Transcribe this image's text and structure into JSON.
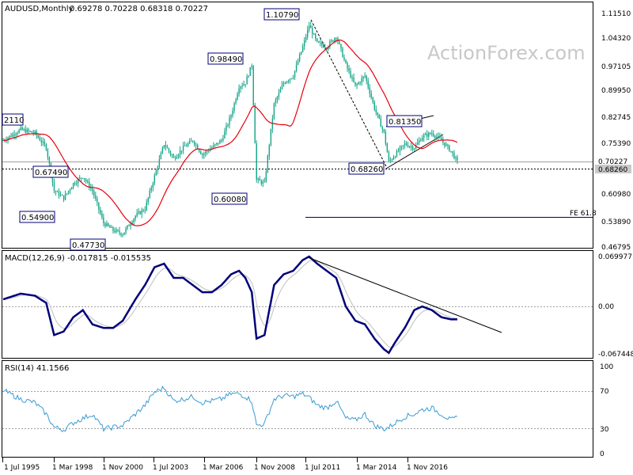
{
  "header": {
    "symbol_info": "AUDUSD,Monthly",
    "ohlc": "0.69278 0.70228 0.68318 0.70227"
  },
  "watermark": "ActionForex.com",
  "colors": {
    "candle": "#17a589",
    "sma": "#e8000b",
    "macd_line": "#00007a",
    "macd_signal": "#c8c8c8",
    "rsi": "#3b9bd3",
    "label_border": "#00007a",
    "trendline": "#000000"
  },
  "x_axis_labels": [
    "1 Jul 1995",
    "1 Mar 1998",
    "1 Nov 2000",
    "1 Jul 2003",
    "1 Mar 2006",
    "1 Nov 2008",
    "1 Jul 2011",
    "1 Mar 2014",
    "1 Nov 2016"
  ],
  "price_axis_labels": [
    "1.11510",
    "1.04320",
    "0.97105",
    "0.89950",
    "0.82745",
    "0.75390",
    "0.68260",
    "0.60980",
    "0.53890",
    "0.46795"
  ],
  "price_markers": {
    "current": "0.70227",
    "level": "0.68260"
  },
  "annotations": {
    "a1": "2110",
    "a2": "0.67490",
    "a3": "0.54900",
    "a4": "0.47730",
    "a5": "0.98490",
    "a6": "0.60080",
    "a7": "1.10790",
    "a8": "0.81350",
    "a9": "0.68260",
    "fe": "FE 61.8"
  },
  "macd": {
    "title": "MACD(12,26,9) -0.017815 -0.015535",
    "axis_labels": [
      "0.069977",
      "0.00",
      "-0.067448"
    ]
  },
  "rsi": {
    "title": "RSI(14) 41.1566",
    "axis_labels": [
      "100",
      "70",
      "30",
      "0"
    ]
  },
  "chart_data": {
    "type": "line",
    "title": "AUDUSD,Monthly",
    "x": [
      "1995-07",
      "1996-06",
      "1997-03",
      "1997-10",
      "1998-03",
      "1998-09",
      "1999-03",
      "1999-09",
      "2000-03",
      "2000-10",
      "2001-04",
      "2001-10",
      "2002-06",
      "2002-12",
      "2003-06",
      "2003-12",
      "2004-06",
      "2004-12",
      "2005-06",
      "2005-12",
      "2006-06",
      "2006-12",
      "2007-06",
      "2007-11",
      "2008-03",
      "2008-07",
      "2008-10",
      "2009-03",
      "2009-09",
      "2010-03",
      "2010-09",
      "2011-03",
      "2011-07",
      "2011-12",
      "2012-06",
      "2012-12",
      "2013-06",
      "2013-12",
      "2014-06",
      "2014-12",
      "2015-06",
      "2015-09",
      "2016-01",
      "2016-07",
      "2017-01",
      "2017-06",
      "2017-12",
      "2018-06",
      "2018-12",
      "2019-04"
    ],
    "series": [
      {
        "name": "AUDUSD",
        "values": [
          0.76,
          0.79,
          0.78,
          0.74,
          0.62,
          0.6,
          0.64,
          0.66,
          0.62,
          0.53,
          0.51,
          0.5,
          0.55,
          0.57,
          0.66,
          0.75,
          0.71,
          0.74,
          0.76,
          0.72,
          0.74,
          0.76,
          0.83,
          0.91,
          0.92,
          0.97,
          0.65,
          0.64,
          0.86,
          0.92,
          0.94,
          1.02,
          1.08,
          1.03,
          1.02,
          1.05,
          0.97,
          0.91,
          0.94,
          0.85,
          0.78,
          0.7,
          0.72,
          0.75,
          0.74,
          0.77,
          0.78,
          0.76,
          0.73,
          0.7
        ]
      },
      {
        "name": "MACD",
        "values": [
          0.01,
          0.018,
          0.015,
          0.005,
          -0.04,
          -0.035,
          -0.015,
          -0.005,
          -0.025,
          -0.03,
          -0.03,
          -0.02,
          0.01,
          0.03,
          0.055,
          0.06,
          0.04,
          0.04,
          0.03,
          0.02,
          0.02,
          0.03,
          0.045,
          0.05,
          0.04,
          0.02,
          -0.045,
          -0.04,
          0.03,
          0.045,
          0.05,
          0.065,
          0.07,
          0.06,
          0.05,
          0.04,
          0.0,
          -0.02,
          -0.025,
          -0.045,
          -0.06,
          -0.065,
          -0.05,
          -0.03,
          -0.005,
          0.0,
          -0.005,
          -0.015,
          -0.018,
          -0.018
        ]
      },
      {
        "name": "RSI",
        "values": [
          72,
          62,
          58,
          45,
          30,
          27,
          35,
          40,
          45,
          28,
          30,
          32,
          45,
          55,
          70,
          75,
          60,
          62,
          65,
          58,
          60,
          62,
          68,
          68,
          65,
          60,
          32,
          34,
          62,
          66,
          65,
          68,
          64,
          55,
          52,
          60,
          40,
          38,
          45,
          32,
          28,
          30,
          35,
          42,
          45,
          50,
          52,
          45,
          38,
          41
        ]
      }
    ],
    "annotations": [
      {
        "label": "1.10790",
        "x": "2011-07",
        "y": 1.1079
      },
      {
        "label": "0.98490",
        "x": "2008-07",
        "y": 0.9849
      },
      {
        "label": "0.60080",
        "x": "2008-10",
        "y": 0.6008
      },
      {
        "label": "0.47730",
        "x": "2001-04",
        "y": 0.4773
      },
      {
        "label": "0.54900",
        "x": "1998-09",
        "y": 0.549
      },
      {
        "label": "0.81350",
        "x": "2016-01",
        "y": 0.8135
      },
      {
        "label": "0.68260",
        "x": "2016-01",
        "y": 0.6826
      }
    ],
    "ylim": [
      0.46795,
      1.1151
    ],
    "macd_ylim": [
      -0.067448,
      0.069977
    ],
    "rsi_ylim": [
      0,
      100
    ],
    "grid": false
  }
}
